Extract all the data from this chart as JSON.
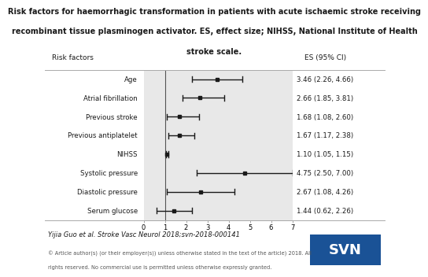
{
  "title_line1": "Risk factors for haemorrhagic transformation in patients with acute ischaemic stroke receiving",
  "title_line2": "recombinant tissue plasminogen activator. ES, effect size; NIHSS, National Institute of Health",
  "title_line3": "stroke scale.",
  "col_header_left": "Risk factors",
  "col_header_right": "ES (95% CI)",
  "risk_factors": [
    "Age",
    "Atrial fibrillation",
    "Previous stroke",
    "Previous antiplatelet",
    "NIHSS",
    "Systolic pressure",
    "Diastolic pressure",
    "Serum glucose"
  ],
  "es": [
    3.46,
    2.66,
    1.68,
    1.67,
    1.1,
    4.75,
    2.67,
    1.44
  ],
  "ci_low": [
    2.26,
    1.85,
    1.08,
    1.17,
    1.05,
    2.5,
    1.08,
    0.62
  ],
  "ci_high": [
    4.66,
    3.81,
    2.6,
    2.38,
    1.15,
    7.0,
    4.26,
    2.26
  ],
  "es_labels": [
    "3.46 (2.26, 4.66)",
    "2.66 (1.85, 3.81)",
    "1.68 (1.08, 2.60)",
    "1.67 (1.17, 2.38)",
    "1.10 (1.05, 1.15)",
    "4.75 (2.50, 7.00)",
    "2.67 (1.08, 4.26)",
    "1.44 (0.62, 2.26)"
  ],
  "xmin": 0,
  "xmax": 7,
  "xticks": [
    0,
    1,
    2,
    3,
    4,
    5,
    6,
    7
  ],
  "ref_line_x": 1,
  "citation": "Yijia Guo et al. Stroke Vasc Neurol 2018;svn-2018-000141",
  "copyright_line1": "© Article author(s) (or their employer(s)) unless otherwise stated in the text of the article) 2018. All",
  "copyright_line2": "rights reserved. No commercial use is permitted unless otherwise expressly granted.",
  "svn_box_color": "#1a5296",
  "svn_text": "SVN",
  "plot_area_bg": "#e8e8e8",
  "main_bg_color": "#ffffff",
  "marker_color": "#1a1a1a",
  "line_color": "#1a1a1a",
  "ref_line_color": "#555555",
  "text_color": "#1a1a1a",
  "header_sep_color": "#aaaaaa",
  "bottom_sep_color": "#aaaaaa"
}
